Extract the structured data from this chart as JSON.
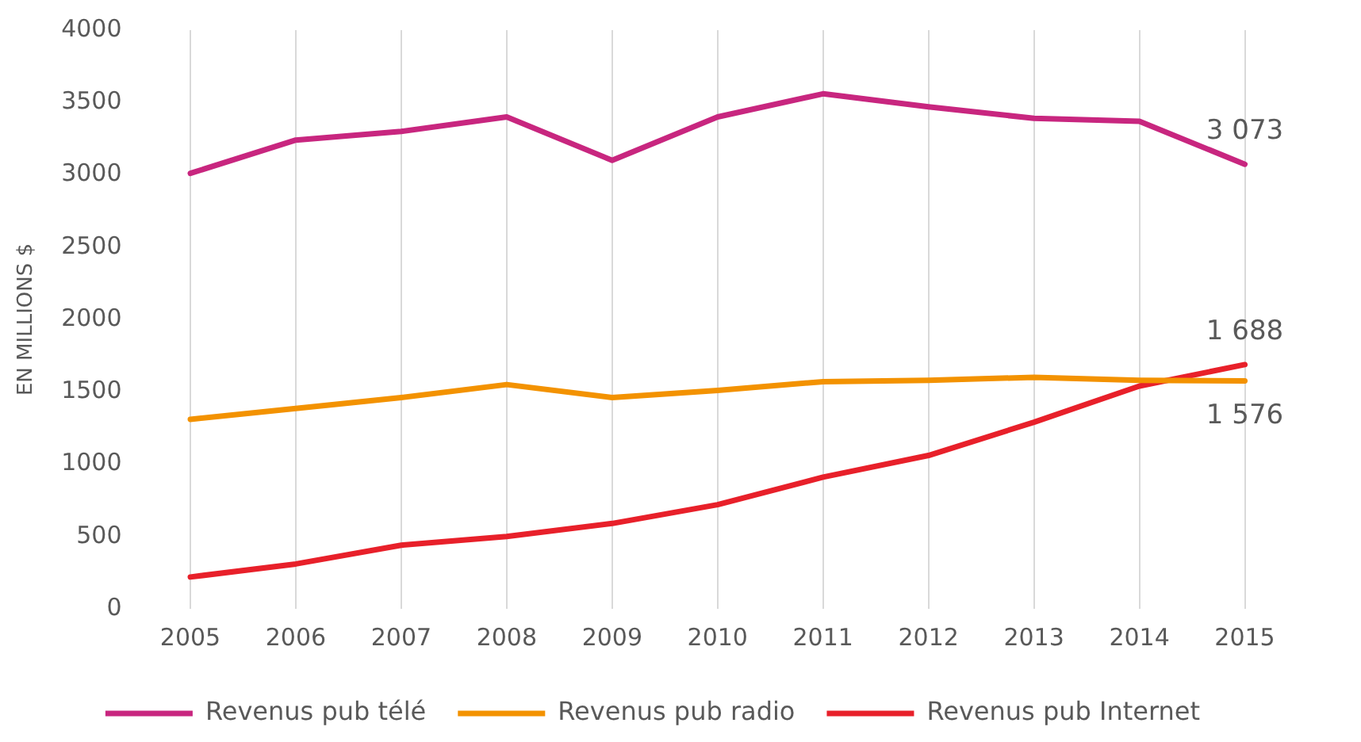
{
  "chart_data": {
    "type": "line",
    "ylabel": "EN MILLIONS $",
    "categories": [
      "2005",
      "2006",
      "2007",
      "2008",
      "2009",
      "2010",
      "2011",
      "2012",
      "2013",
      "2014",
      "2015"
    ],
    "series": [
      {
        "name": "Revenus pub télé",
        "color": "#c8267f",
        "values": [
          3010,
          3240,
          3300,
          3400,
          3100,
          3400,
          3560,
          3470,
          3390,
          3370,
          3073
        ],
        "value_labels": [
          null,
          null,
          null,
          null,
          null,
          null,
          null,
          null,
          null,
          null,
          "3 073"
        ]
      },
      {
        "name": "Revenus pub radio",
        "color": "#f39200",
        "values": [
          1310,
          1385,
          1460,
          1550,
          1460,
          1510,
          1570,
          1580,
          1600,
          1580,
          1576
        ],
        "value_labels": [
          null,
          null,
          null,
          null,
          null,
          null,
          null,
          null,
          null,
          null,
          "1 576"
        ]
      },
      {
        "name": "Revenus pub Internet",
        "color": "#e8202a",
        "values": [
          220,
          310,
          440,
          500,
          590,
          720,
          910,
          1060,
          1290,
          1540,
          1688
        ],
        "value_labels": [
          null,
          null,
          null,
          null,
          null,
          null,
          null,
          null,
          null,
          null,
          "1 688"
        ]
      }
    ],
    "ylim": [
      0,
      4000
    ],
    "yticks": [
      0,
      500,
      1000,
      1500,
      2000,
      2500,
      3000,
      3500,
      4000
    ],
    "grid": "x",
    "legend": "bottom",
    "marker": "none",
    "line_style": "solid"
  }
}
